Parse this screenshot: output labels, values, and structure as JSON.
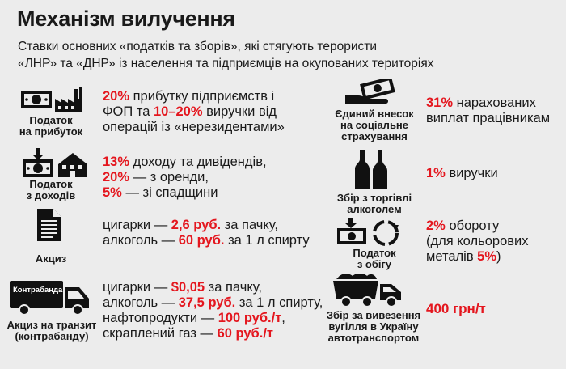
{
  "title": "Механізм вилучення",
  "subtitle": [
    "Ставки основних «податків та зборів», які стягують терористи",
    "«ЛНР» та «ДНР» із населення та підприємців на окупованих територіях"
  ],
  "accent_color": "#e4161e",
  "left": [
    {
      "icon": "money-factory-icon",
      "caption": [
        "Податок",
        "на прибуток"
      ],
      "lines": [
        [
          {
            "t": "20%",
            "r": true
          },
          {
            "t": " прибутку підприємств і",
            "r": false
          }
        ],
        [
          {
            "t": "ФОП та ",
            "r": false
          },
          {
            "t": "10–20%",
            "r": true
          },
          {
            "t": " виручки від",
            "r": false
          }
        ],
        [
          {
            "t": "операцій із «нерезидентами»",
            "r": false
          }
        ]
      ]
    },
    {
      "icon": "money-house-icon",
      "caption": [
        "Податок",
        "з доходів"
      ],
      "lines": [
        [
          {
            "t": "13%",
            "r": true
          },
          {
            "t": " доходу та дивідендів,",
            "r": false
          }
        ],
        [
          {
            "t": "20%",
            "r": true
          },
          {
            "t": " — з оренди,",
            "r": false
          }
        ],
        [
          {
            "t": "5%",
            "r": true
          },
          {
            "t": " — зі спадщини",
            "r": false
          }
        ]
      ]
    },
    {
      "icon": "document-icon",
      "caption": [
        "Акциз"
      ],
      "lines": [
        [
          {
            "t": "цигарки — ",
            "r": false
          },
          {
            "t": "2,6 руб.",
            "r": true
          },
          {
            "t": " за пачку,",
            "r": false
          }
        ],
        [
          {
            "t": "алкоголь — ",
            "r": false
          },
          {
            "t": "60 руб.",
            "r": true
          },
          {
            "t": " за 1 л спирту",
            "r": false
          }
        ]
      ]
    },
    {
      "icon": "truck-icon",
      "truck_label": "Контрабанда",
      "caption": [
        "Акциз на транзит",
        "(контрабанду)"
      ],
      "lines": [
        [
          {
            "t": "цигарки — ",
            "r": false
          },
          {
            "t": "$0,05",
            "r": true
          },
          {
            "t": " за пачку,",
            "r": false
          }
        ],
        [
          {
            "t": "алкоголь — ",
            "r": false
          },
          {
            "t": "37,5 руб.",
            "r": true
          },
          {
            "t": " за 1 л спирту,",
            "r": false
          }
        ],
        [
          {
            "t": "нафтопродукти — ",
            "r": false
          },
          {
            "t": "100 руб./т",
            "r": true
          },
          {
            "t": ",",
            "r": false
          }
        ],
        [
          {
            "t": "скраплений газ — ",
            "r": false
          },
          {
            "t": "60 руб./т",
            "r": true
          }
        ]
      ]
    }
  ],
  "right": [
    {
      "icon": "hand-money-icon",
      "caption": [
        "Єдиний внесок",
        "на соціальне",
        "страхування"
      ],
      "lines": [
        [
          {
            "t": "31%",
            "r": true
          },
          {
            "t": " нарахованих",
            "r": false
          }
        ],
        [
          {
            "t": "виплат працівникам",
            "r": false
          }
        ]
      ]
    },
    {
      "icon": "bottles-icon",
      "caption": [
        "Збір з торгівлі",
        "алкоголем"
      ],
      "lines": [
        [
          {
            "t": "1%",
            "r": true
          },
          {
            "t": " виручки",
            "r": false
          }
        ]
      ]
    },
    {
      "icon": "money-cycle-icon",
      "caption": [
        "Податок",
        "з обігу"
      ],
      "lines": [
        [
          {
            "t": "2%",
            "r": true
          },
          {
            "t": " обороту",
            "r": false
          }
        ],
        [
          {
            "t": "(для кольорових",
            "r": false
          }
        ],
        [
          {
            "t": "металів ",
            "r": false
          },
          {
            "t": "5%",
            "r": true
          },
          {
            "t": ")",
            "r": false
          }
        ]
      ]
    },
    {
      "icon": "dump-truck-icon",
      "caption": [
        "Збір за вивезення",
        "вугілля в Україну",
        "автотранспортом"
      ],
      "lines": [
        [
          {
            "t": "400 грн/т",
            "r": true
          }
        ]
      ]
    }
  ]
}
